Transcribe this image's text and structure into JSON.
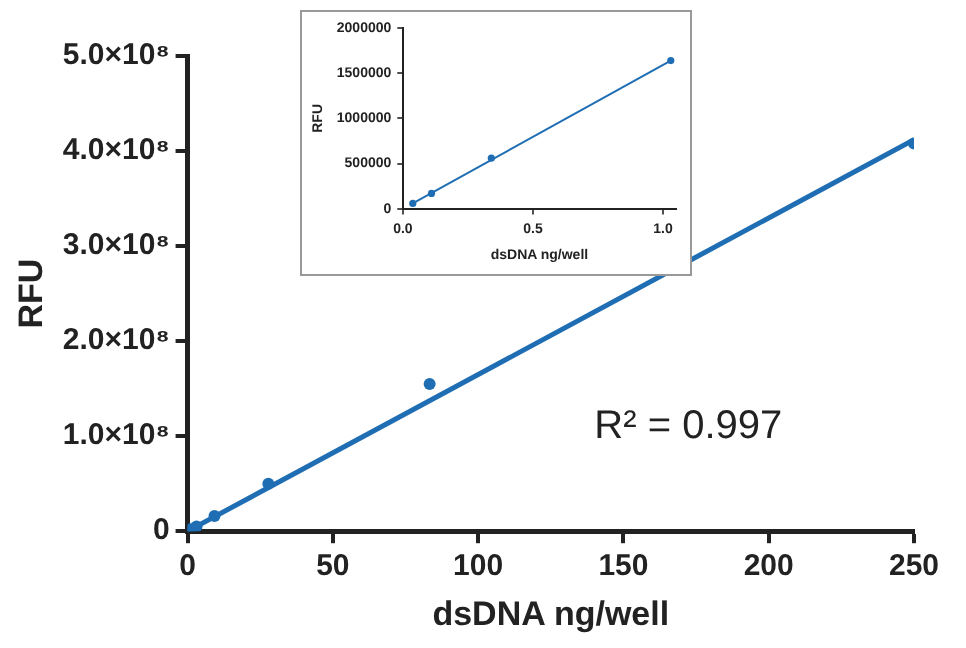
{
  "chart_data": [
    {
      "type": "scatter",
      "xlabel": "dsDNA ng/well",
      "ylabel": "RFU",
      "xlim": [
        0,
        250
      ],
      "ylim": [
        0,
        500000000
      ],
      "xticks": [
        0,
        50,
        100,
        150,
        200,
        250
      ],
      "yticks": [
        0,
        {
          "value": 100000000,
          "label": "1.0×10⁸"
        },
        {
          "value": 200000000,
          "label": "2.0×10⁸"
        },
        {
          "value": 300000000,
          "label": "3.0×10⁸"
        },
        {
          "value": 400000000,
          "label": "4.0×10⁸"
        },
        {
          "value": 500000000,
          "label": "5.0×10⁸"
        }
      ],
      "series": [
        {
          "type": "scatter",
          "color": "#1f6eb4",
          "marker": "circle",
          "x": [
            0,
            1.03,
            3.09,
            9.26,
            27.8,
            83.3,
            250
          ],
          "values": [
            0,
            2000000,
            5000000,
            16000000,
            50000000,
            155000000,
            408000000
          ]
        },
        {
          "type": "line",
          "color": "#1f6eb4",
          "marker": "none",
          "line_style": "solid",
          "x": [
            0,
            250
          ],
          "values": [
            0,
            412000000
          ]
        }
      ],
      "annotations": [
        "R² = 0.997"
      ],
      "grid": false,
      "legend": false
    },
    {
      "type": "scatter",
      "xlabel": "dsDNA ng/well",
      "ylabel": "RFU",
      "xlim": [
        0,
        1.05
      ],
      "ylim": [
        0,
        2000000
      ],
      "xticks": [
        {
          "value": 0,
          "label": "0.0"
        },
        0.5,
        {
          "value": 1,
          "label": "1.0"
        }
      ],
      "yticks": [
        0,
        500000,
        1000000,
        1500000,
        2000000
      ],
      "series": [
        {
          "type": "scatter",
          "color": "#1f6eb4",
          "marker": "circle",
          "x": [
            0.038,
            0.11,
            0.34,
            1.03
          ],
          "values": [
            60000,
            170000,
            560000,
            1640000
          ]
        },
        {
          "type": "line",
          "color": "#1f6eb4",
          "marker": "none",
          "line_style": "solid",
          "x": [
            0.038,
            1.03
          ],
          "values": [
            60000,
            1640000
          ]
        }
      ],
      "grid": false,
      "legend": false
    }
  ]
}
